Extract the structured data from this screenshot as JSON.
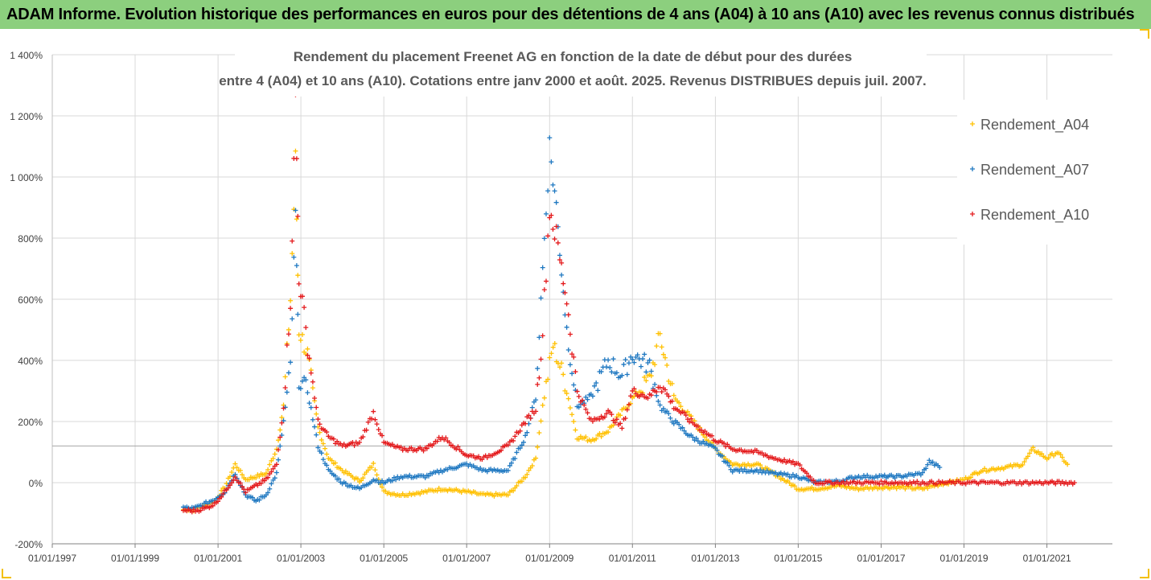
{
  "banner": {
    "title": "ADAM Informe. Evolution historique des performances en euros pour des détentions de 4 ans (A04) à 10 ans (A10) avec les revenus connus distribués"
  },
  "colors": {
    "banner_bg": "#8ccf7e",
    "A04": "#ffc000",
    "A07": "#1f78c1",
    "A10": "#e41a1c",
    "grid": "#d9d9d9",
    "reference_line": "#a6a6a6"
  },
  "chart_data": {
    "type": "scatter",
    "title_line1": "Rendement du placement Freenet AG en fonction de la date de début pour des durées",
    "title_line2": "entre 4 (A04) et 10 ans (A10). Cotations entre janv 2000 et août. 2025. Revenus DISTRIBUES depuis juil. 2007.",
    "x_axis": {
      "type": "date",
      "range": [
        "1997-01-01",
        "2022-08-01"
      ],
      "tick_labels": [
        "01/01/1997",
        "01/01/1999",
        "01/01/2001",
        "01/01/2003",
        "01/01/2005",
        "01/01/2007",
        "01/01/2009",
        "01/01/2011",
        "01/01/2013",
        "01/01/2015",
        "01/01/2017",
        "01/01/2019",
        "01/01/2021"
      ]
    },
    "y_axis": {
      "unit": "%",
      "range": [
        -200,
        1400
      ],
      "tick_values": [
        -200,
        0,
        200,
        400,
        600,
        800,
        1000,
        1200,
        1400
      ],
      "tick_labels": [
        "-200%",
        "0%",
        "200%",
        "400%",
        "600%",
        "800%",
        "1 000%",
        "1 200%",
        "1 400%"
      ]
    },
    "grid": "vertical and horizontal, light gray",
    "reference_line": {
      "y": 120
    },
    "legend": {
      "position": "right",
      "marker": "+"
    },
    "series": [
      {
        "name": "Rendement_A04",
        "key": "A04",
        "points": [
          [
            "2000-03-01",
            -88
          ],
          [
            "2000-06-01",
            -88
          ],
          [
            "2000-09-01",
            -75
          ],
          [
            "2000-12-01",
            -60
          ],
          [
            "2001-03-01",
            -15
          ],
          [
            "2001-06-01",
            60
          ],
          [
            "2001-09-01",
            10
          ],
          [
            "2001-12-01",
            20
          ],
          [
            "2002-03-01",
            30
          ],
          [
            "2002-06-01",
            110
          ],
          [
            "2002-08-01",
            250
          ],
          [
            "2002-10-01",
            600
          ],
          [
            "2002-11-15",
            1050
          ],
          [
            "2002-12-15",
            500
          ],
          [
            "2003-03-01",
            420
          ],
          [
            "2003-06-01",
            180
          ],
          [
            "2003-09-01",
            80
          ],
          [
            "2004-01-01",
            40
          ],
          [
            "2004-06-01",
            5
          ],
          [
            "2004-10-01",
            60
          ],
          [
            "2005-01-01",
            -30
          ],
          [
            "2005-06-01",
            -40
          ],
          [
            "2006-01-01",
            -30
          ],
          [
            "2006-06-01",
            -20
          ],
          [
            "2007-01-01",
            -30
          ],
          [
            "2007-06-01",
            -40
          ],
          [
            "2008-01-01",
            -40
          ],
          [
            "2008-06-01",
            20
          ],
          [
            "2008-09-01",
            80
          ],
          [
            "2008-11-01",
            250
          ],
          [
            "2009-02-01",
            450
          ],
          [
            "2009-05-01",
            350
          ],
          [
            "2009-09-01",
            150
          ],
          [
            "2010-01-01",
            140
          ],
          [
            "2010-06-01",
            170
          ],
          [
            "2010-12-01",
            260
          ],
          [
            "2011-06-01",
            340
          ],
          [
            "2011-09-01",
            480
          ],
          [
            "2012-01-01",
            280
          ],
          [
            "2012-06-01",
            210
          ],
          [
            "2013-01-01",
            110
          ],
          [
            "2013-06-01",
            60
          ],
          [
            "2014-01-01",
            60
          ],
          [
            "2014-06-01",
            30
          ],
          [
            "2015-01-01",
            -20
          ],
          [
            "2015-06-01",
            -20
          ],
          [
            "2016-01-01",
            -10
          ],
          [
            "2016-06-01",
            -20
          ],
          [
            "2017-01-01",
            -15
          ],
          [
            "2017-06-01",
            -15
          ],
          [
            "2018-01-01",
            -20
          ],
          [
            "2018-06-01",
            -5
          ],
          [
            "2019-01-01",
            10
          ],
          [
            "2019-06-01",
            40
          ],
          [
            "2020-01-01",
            50
          ],
          [
            "2020-06-01",
            60
          ],
          [
            "2020-09-01",
            110
          ],
          [
            "2021-01-01",
            80
          ],
          [
            "2021-04-01",
            100
          ],
          [
            "2021-07-01",
            60
          ]
        ]
      },
      {
        "name": "Rendement_A07",
        "key": "A07",
        "points": [
          [
            "2000-03-01",
            -82
          ],
          [
            "2000-06-01",
            -85
          ],
          [
            "2000-09-01",
            -70
          ],
          [
            "2000-12-01",
            -55
          ],
          [
            "2001-03-01",
            -30
          ],
          [
            "2001-06-01",
            30
          ],
          [
            "2001-09-01",
            -40
          ],
          [
            "2001-12-01",
            -60
          ],
          [
            "2002-03-01",
            -40
          ],
          [
            "2002-06-01",
            30
          ],
          [
            "2002-08-01",
            200
          ],
          [
            "2002-10-01",
            380
          ],
          [
            "2002-11-15",
            870
          ],
          [
            "2002-12-15",
            340
          ],
          [
            "2003-03-01",
            300
          ],
          [
            "2003-06-01",
            120
          ],
          [
            "2003-09-01",
            40
          ],
          [
            "2004-01-01",
            0
          ],
          [
            "2004-06-01",
            -20
          ],
          [
            "2004-10-01",
            10
          ],
          [
            "2005-01-01",
            0
          ],
          [
            "2005-06-01",
            20
          ],
          [
            "2006-01-01",
            20
          ],
          [
            "2006-06-01",
            40
          ],
          [
            "2007-01-01",
            60
          ],
          [
            "2007-06-01",
            40
          ],
          [
            "2008-01-01",
            40
          ],
          [
            "2008-06-01",
            150
          ],
          [
            "2008-09-01",
            280
          ],
          [
            "2008-11-01",
            700
          ],
          [
            "2009-01-01",
            1100
          ],
          [
            "2009-03-01",
            900
          ],
          [
            "2009-06-01",
            500
          ],
          [
            "2009-09-01",
            250
          ],
          [
            "2010-01-01",
            280
          ],
          [
            "2010-06-01",
            400
          ],
          [
            "2010-10-01",
            350
          ],
          [
            "2011-01-01",
            420
          ],
          [
            "2011-06-01",
            380
          ],
          [
            "2011-09-01",
            250
          ],
          [
            "2012-01-01",
            200
          ],
          [
            "2012-06-01",
            150
          ],
          [
            "2013-01-01",
            110
          ],
          [
            "2013-06-01",
            40
          ],
          [
            "2014-01-01",
            40
          ],
          [
            "2014-06-01",
            30
          ],
          [
            "2015-01-01",
            20
          ],
          [
            "2015-06-01",
            0
          ],
          [
            "2016-01-01",
            5
          ],
          [
            "2016-06-01",
            20
          ],
          [
            "2017-01-01",
            20
          ],
          [
            "2017-06-01",
            20
          ],
          [
            "2018-01-01",
            30
          ],
          [
            "2018-03-01",
            70
          ],
          [
            "2018-06-01",
            50
          ]
        ]
      },
      {
        "name": "Rendement_A10",
        "key": "A10",
        "points": [
          [
            "2000-03-01",
            -90
          ],
          [
            "2000-06-01",
            -92
          ],
          [
            "2000-09-01",
            -85
          ],
          [
            "2000-12-01",
            -70
          ],
          [
            "2001-03-01",
            -30
          ],
          [
            "2001-06-01",
            20
          ],
          [
            "2001-09-01",
            -30
          ],
          [
            "2001-12-01",
            -10
          ],
          [
            "2002-03-01",
            10
          ],
          [
            "2002-06-01",
            60
          ],
          [
            "2002-08-01",
            250
          ],
          [
            "2002-10-01",
            600
          ],
          [
            "2002-11-15",
            1250
          ],
          [
            "2002-12-15",
            680
          ],
          [
            "2003-03-01",
            450
          ],
          [
            "2003-06-01",
            200
          ],
          [
            "2003-09-01",
            150
          ],
          [
            "2004-01-01",
            120
          ],
          [
            "2004-06-01",
            130
          ],
          [
            "2004-10-01",
            230
          ],
          [
            "2005-01-01",
            130
          ],
          [
            "2005-06-01",
            110
          ],
          [
            "2006-01-01",
            110
          ],
          [
            "2006-06-01",
            150
          ],
          [
            "2007-01-01",
            90
          ],
          [
            "2007-06-01",
            80
          ],
          [
            "2008-01-01",
            120
          ],
          [
            "2008-06-01",
            200
          ],
          [
            "2008-09-01",
            240
          ],
          [
            "2008-11-01",
            500
          ],
          [
            "2009-01-01",
            900
          ],
          [
            "2009-03-01",
            800
          ],
          [
            "2009-06-01",
            600
          ],
          [
            "2009-09-01",
            300
          ],
          [
            "2010-01-01",
            200
          ],
          [
            "2010-06-01",
            230
          ],
          [
            "2010-10-01",
            180
          ],
          [
            "2011-01-01",
            300
          ],
          [
            "2011-06-01",
            280
          ],
          [
            "2011-09-01",
            330
          ],
          [
            "2012-01-01",
            250
          ],
          [
            "2012-06-01",
            200
          ],
          [
            "2013-01-01",
            140
          ],
          [
            "2013-06-01",
            110
          ],
          [
            "2014-01-01",
            100
          ],
          [
            "2014-06-01",
            80
          ],
          [
            "2015-01-01",
            60
          ],
          [
            "2015-06-01",
            0
          ],
          [
            "2016-01-01",
            0
          ],
          [
            "2017-01-01",
            0
          ],
          [
            "2018-01-01",
            0
          ],
          [
            "2019-01-01",
            0
          ],
          [
            "2020-01-01",
            0
          ],
          [
            "2021-01-01",
            0
          ],
          [
            "2021-09-01",
            0
          ]
        ]
      }
    ]
  }
}
